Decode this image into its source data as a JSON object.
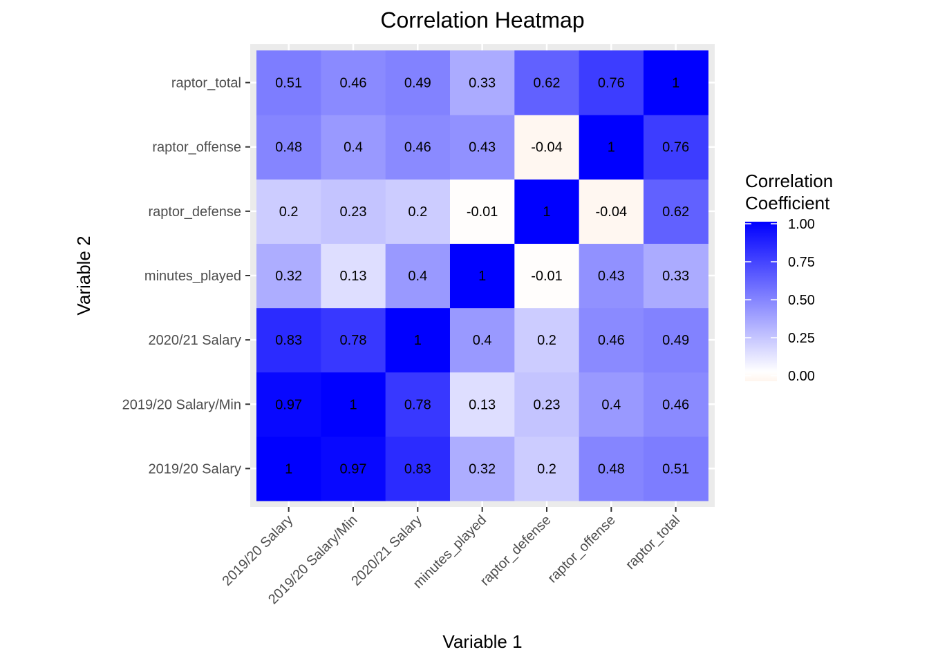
{
  "chart_data": {
    "type": "heatmap",
    "title": "Correlation Heatmap",
    "xlabel": "Variable 1",
    "ylabel": "Variable 2",
    "variables": [
      "2019/20 Salary",
      "2019/20 Salary/Min",
      "2020/21 Salary",
      "minutes_played",
      "raptor_defense",
      "raptor_offense",
      "raptor_total"
    ],
    "matrix": [
      [
        1,
        0.97,
        0.83,
        0.32,
        0.2,
        0.48,
        0.51
      ],
      [
        0.97,
        1,
        0.78,
        0.13,
        0.23,
        0.4,
        0.46
      ],
      [
        0.83,
        0.78,
        1,
        0.4,
        0.2,
        0.46,
        0.49
      ],
      [
        0.32,
        0.13,
        0.4,
        1,
        -0.01,
        0.43,
        0.33
      ],
      [
        0.2,
        0.23,
        0.2,
        -0.01,
        1,
        -0.04,
        0.62
      ],
      [
        0.48,
        0.4,
        0.46,
        0.43,
        -0.04,
        1,
        0.76
      ],
      [
        0.51,
        0.46,
        0.49,
        0.33,
        0.62,
        0.76,
        1
      ]
    ],
    "colors": {
      "low": "#fff5ee",
      "mid": "#ffffff",
      "high": "#0000ff",
      "panel_bg": "#ebebeb",
      "grid": "#ffffff"
    },
    "legend": {
      "title_line1": "Correlation",
      "title_line2": "Coefficient",
      "breaks": [
        1.0,
        0.75,
        0.5,
        0.25,
        0.0
      ],
      "break_labels": [
        "1.00",
        "0.75",
        "0.50",
        "0.25",
        "0.00"
      ],
      "placement": "right"
    }
  }
}
